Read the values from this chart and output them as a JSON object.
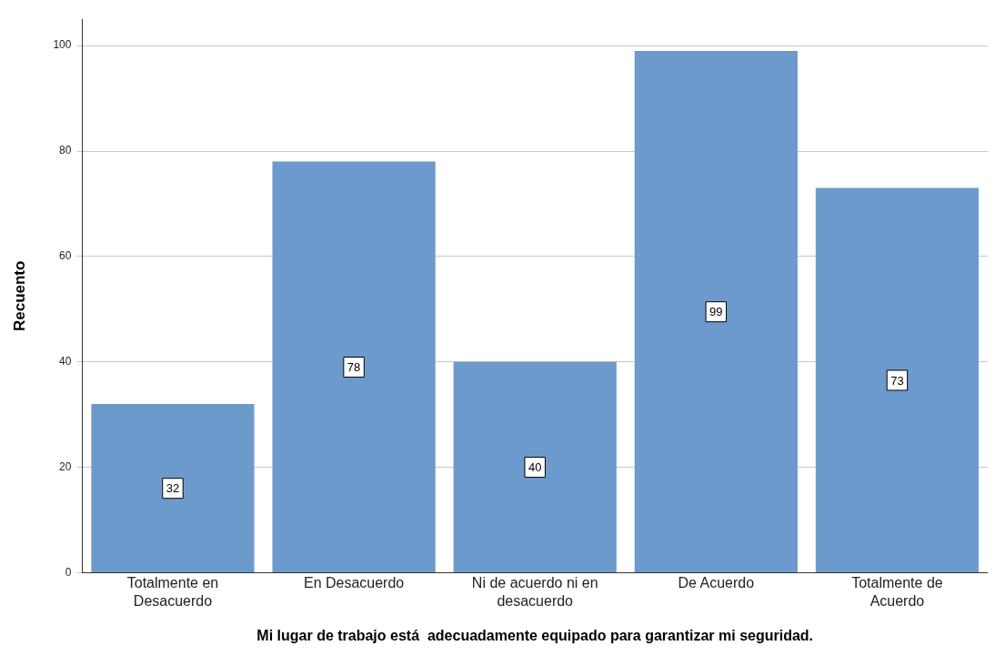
{
  "chart_data": {
    "type": "bar",
    "xlabel": "Mi lugar de trabajo está  adecuadamente equipado para garantizar mi seguridad.",
    "ylabel": "Recuento",
    "categories": [
      "Totalmente en Desacuerdo",
      "En Desacuerdo",
      "Ni de acuerdo ni en desacuerdo",
      "De Acuerdo",
      "Totalmente de Acuerdo"
    ],
    "values": [
      32,
      78,
      40,
      99,
      73
    ],
    "color": "#6d9acc",
    "ylim": [
      0,
      105
    ],
    "yticks": [
      0,
      20,
      40,
      60,
      80,
      100
    ],
    "grid": "y",
    "data_labels": true,
    "legend": false
  }
}
